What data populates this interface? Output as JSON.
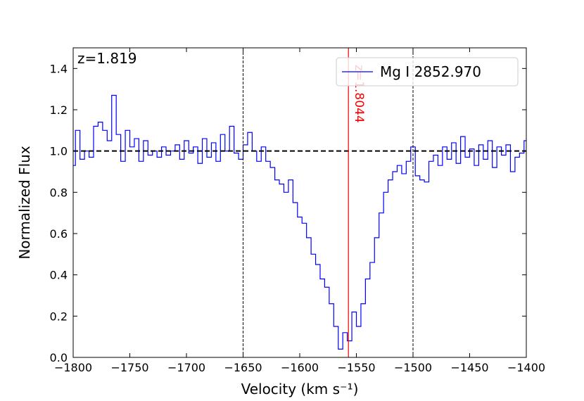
{
  "chart_data": {
    "type": "step",
    "ylabel": "Normalized Flux",
    "xlabel": "Velocity (km s⁻¹)",
    "annotation": "z=1.819",
    "x": [
      -1800,
      -1796,
      -1792,
      -1788,
      -1784,
      -1780,
      -1776,
      -1772,
      -1768,
      -1764,
      -1760,
      -1756,
      -1752,
      -1748,
      -1744,
      -1740,
      -1736,
      -1732,
      -1728,
      -1724,
      -1720,
      -1716,
      -1712,
      -1708,
      -1704,
      -1700,
      -1696,
      -1692,
      -1688,
      -1684,
      -1680,
      -1676,
      -1672,
      -1668,
      -1664,
      -1660,
      -1656,
      -1652,
      -1648,
      -1644,
      -1640,
      -1636,
      -1632,
      -1628,
      -1624,
      -1620,
      -1616,
      -1612,
      -1608,
      -1604,
      -1600,
      -1596,
      -1592,
      -1588,
      -1584,
      -1580,
      -1576,
      -1572,
      -1568,
      -1564,
      -1560,
      -1556,
      -1552,
      -1548,
      -1544,
      -1540,
      -1536,
      -1532,
      -1528,
      -1524,
      -1520,
      -1516,
      -1512,
      -1508,
      -1504,
      -1500,
      -1496,
      -1492,
      -1488,
      -1484,
      -1480,
      -1476,
      -1472,
      -1468,
      -1464,
      -1460,
      -1456,
      -1452,
      -1448,
      -1444,
      -1440,
      -1436,
      -1432,
      -1428,
      -1424,
      -1420,
      -1416,
      -1412,
      -1408,
      -1404,
      -1400
    ],
    "series": [
      {
        "name": "Mg I 2852.970",
        "color": "#0000ff",
        "values": [
          0.93,
          1.1,
          0.96,
          1.0,
          0.97,
          1.12,
          1.14,
          1.1,
          1.05,
          1.27,
          1.08,
          0.95,
          1.1,
          1.02,
          1.06,
          0.95,
          1.05,
          0.98,
          1.0,
          0.97,
          1.02,
          0.98,
          1.0,
          1.03,
          0.96,
          1.05,
          0.99,
          1.02,
          0.94,
          1.06,
          0.97,
          1.04,
          0.95,
          1.08,
          1.0,
          1.12,
          0.99,
          0.96,
          1.03,
          1.09,
          1.0,
          0.95,
          1.02,
          0.95,
          0.92,
          0.86,
          0.84,
          0.8,
          0.86,
          0.75,
          0.68,
          0.65,
          0.58,
          0.5,
          0.45,
          0.38,
          0.34,
          0.26,
          0.15,
          0.04,
          0.12,
          0.08,
          0.22,
          0.15,
          0.26,
          0.38,
          0.46,
          0.58,
          0.7,
          0.8,
          0.86,
          0.9,
          0.93,
          0.89,
          0.95,
          1.02,
          0.88,
          0.86,
          0.85,
          0.95,
          0.98,
          0.93,
          1.02,
          0.96,
          1.04,
          0.94,
          1.07,
          0.97,
          1.01,
          0.93,
          1.03,
          0.96,
          1.05,
          0.92,
          1.02,
          0.98,
          1.03,
          0.9,
          0.97,
          0.99,
          1.05
        ]
      }
    ],
    "xlim": [
      -1800,
      -1400
    ],
    "ylim": [
      0,
      1.5
    ],
    "xticks": [
      {
        "value": -1800,
        "label": "−1800"
      },
      {
        "value": -1750,
        "label": "−1750"
      },
      {
        "value": -1700,
        "label": "−1700"
      },
      {
        "value": -1650,
        "label": "−1650"
      },
      {
        "value": -1600,
        "label": "−1600"
      },
      {
        "value": -1550,
        "label": "−1550"
      },
      {
        "value": -1500,
        "label": "−1500"
      },
      {
        "value": -1450,
        "label": "−1450"
      },
      {
        "value": -1400,
        "label": "−1400"
      }
    ],
    "yticks": [
      {
        "value": 0,
        "label": "0.0"
      },
      {
        "value": 0.2,
        "label": "0.2"
      },
      {
        "value": 0.4,
        "label": "0.4"
      },
      {
        "value": 0.6,
        "label": "0.6"
      },
      {
        "value": 0.8,
        "label": "0.8"
      },
      {
        "value": 1.0,
        "label": "1.0"
      },
      {
        "value": 1.2,
        "label": "1.2"
      },
      {
        "value": 1.4,
        "label": "1.4"
      }
    ],
    "vlines": [
      -1650,
      -1500
    ],
    "hline": 1.0,
    "marker_line": {
      "x": -1557,
      "label": "z=1.8044",
      "color": "#ff0000"
    },
    "legend": "upper right"
  }
}
